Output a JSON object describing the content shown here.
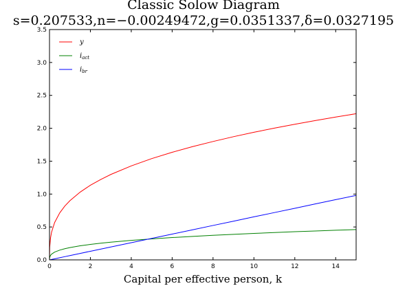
{
  "chart_data": {
    "type": "line",
    "title": "Classic Solow Diagram",
    "subtitle": "s=0.207533,n=−0.00249472,g=0.0351337,δ=0.0327195",
    "xlabel": "Capital per effective person, k",
    "ylabel": "",
    "xlim": [
      0,
      15
    ],
    "ylim": [
      0,
      3.5
    ],
    "grid": false,
    "legend_position": "top-left",
    "x_ticks": [
      0,
      2,
      4,
      6,
      8,
      10,
      12,
      14
    ],
    "x_tick_labels": [
      "0",
      "2",
      "4",
      "6",
      "8",
      "10",
      "12",
      "14"
    ],
    "y_ticks": [
      0.0,
      0.5,
      1.0,
      1.5,
      2.0,
      2.5,
      3.0,
      3.5
    ],
    "y_tick_labels": [
      "0.0",
      "0.5",
      "1.0",
      "1.5",
      "2.0",
      "2.5",
      "3.0",
      "3.5"
    ],
    "x": [
      0,
      0.01,
      0.05,
      0.1,
      0.25,
      0.5,
      0.75,
      1,
      1.5,
      2,
      2.5,
      3,
      4,
      5,
      6,
      7,
      8,
      9,
      10,
      11,
      12,
      13,
      14,
      15
    ],
    "series": [
      {
        "name": "y",
        "color": "#ff0000",
        "values": [
          0.0,
          0.192,
          0.332,
          0.419,
          0.567,
          0.714,
          0.818,
          0.9,
          1.03,
          1.134,
          1.221,
          1.298,
          1.428,
          1.539,
          1.635,
          1.721,
          1.799,
          1.872,
          1.939,
          2.002,
          2.061,
          2.117,
          2.17,
          2.221
        ]
      },
      {
        "name": "i_act",
        "color": "#008000",
        "values": [
          0.0,
          0.04,
          0.069,
          0.087,
          0.118,
          0.148,
          0.17,
          0.187,
          0.214,
          0.235,
          0.253,
          0.269,
          0.296,
          0.319,
          0.339,
          0.357,
          0.373,
          0.388,
          0.402,
          0.415,
          0.428,
          0.439,
          0.45,
          0.461
        ]
      },
      {
        "name": "i_br",
        "color": "#0000ff",
        "values": [
          0.0,
          0.00065,
          0.0033,
          0.0065,
          0.016,
          0.033,
          0.049,
          0.065,
          0.098,
          0.131,
          0.163,
          0.196,
          0.261,
          0.327,
          0.392,
          0.457,
          0.523,
          0.588,
          0.654,
          0.719,
          0.784,
          0.85,
          0.915,
          0.98
        ]
      }
    ]
  }
}
